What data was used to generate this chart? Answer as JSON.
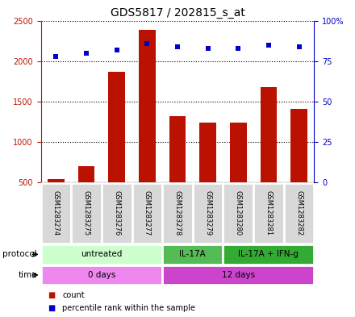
{
  "title": "GDS5817 / 202815_s_at",
  "samples": [
    "GSM1283274",
    "GSM1283275",
    "GSM1283276",
    "GSM1283277",
    "GSM1283278",
    "GSM1283279",
    "GSM1283280",
    "GSM1283281",
    "GSM1283282"
  ],
  "counts": [
    540,
    700,
    1870,
    2390,
    1320,
    1240,
    1240,
    1680,
    1410
  ],
  "percentile_ranks": [
    78,
    80,
    82,
    86,
    84,
    83,
    83,
    85,
    84
  ],
  "ylim_left": [
    500,
    2500
  ],
  "ylim_right": [
    0,
    100
  ],
  "yticks_left": [
    500,
    1000,
    1500,
    2000,
    2500
  ],
  "yticks_right": [
    0,
    25,
    50,
    75,
    100
  ],
  "ytick_labels_left": [
    "500",
    "1000",
    "1500",
    "2000",
    "2500"
  ],
  "ytick_labels_right": [
    "0",
    "25",
    "50",
    "75",
    "100%"
  ],
  "bar_color": "#bb1100",
  "scatter_color": "#0000cc",
  "protocol_groups": [
    {
      "label": "untreated",
      "start": 0,
      "end": 4,
      "color": "#ccffcc"
    },
    {
      "label": "IL-17A",
      "start": 4,
      "end": 6,
      "color": "#55bb55"
    },
    {
      "label": "IL-17A + IFN-g",
      "start": 6,
      "end": 9,
      "color": "#33aa33"
    }
  ],
  "time_groups": [
    {
      "label": "0 days",
      "start": 0,
      "end": 4,
      "color": "#ee88ee"
    },
    {
      "label": "12 days",
      "start": 4,
      "end": 9,
      "color": "#cc44cc"
    }
  ],
  "legend_count_color": "#bb1100",
  "legend_percentile_color": "#0000cc",
  "title_fontsize": 10,
  "tick_fontsize": 7,
  "sample_fontsize": 6,
  "row_fontsize": 7.5,
  "legend_fontsize": 7
}
